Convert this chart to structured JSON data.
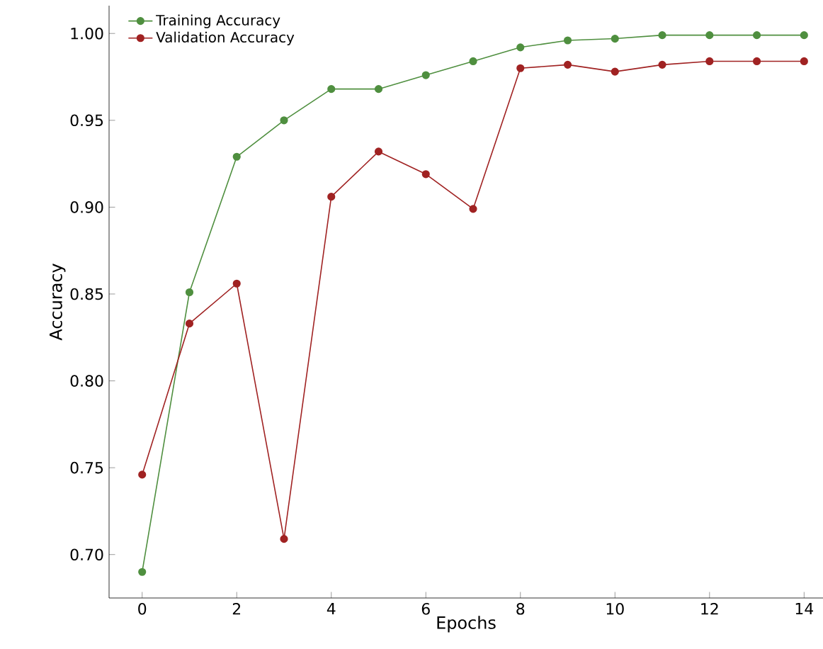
{
  "chart_data": {
    "type": "line",
    "xlabel": "Epochs",
    "ylabel": "Accuracy",
    "x": [
      0,
      1,
      2,
      3,
      4,
      5,
      6,
      7,
      8,
      9,
      10,
      11,
      12,
      13,
      14
    ],
    "series": [
      {
        "name": "Training Accuracy",
        "color": "#4f8f3f",
        "values": [
          0.69,
          0.851,
          0.929,
          0.95,
          0.968,
          0.968,
          0.976,
          0.984,
          0.992,
          0.996,
          0.997,
          0.999,
          0.999,
          0.999,
          0.999
        ]
      },
      {
        "name": "Validation Accuracy",
        "color": "#a02222",
        "values": [
          0.746,
          0.833,
          0.856,
          0.709,
          0.906,
          0.932,
          0.919,
          0.899,
          0.98,
          0.982,
          0.978,
          0.982,
          0.984,
          0.984,
          0.984
        ]
      }
    ],
    "xlim": [
      -0.7,
      14.4
    ],
    "ylim": [
      0.675,
      1.016
    ],
    "xticks": [
      0,
      2,
      4,
      6,
      8,
      10,
      12,
      14
    ],
    "yticks": [
      {
        "value": 0.7,
        "label": "0.70"
      },
      {
        "value": 0.75,
        "label": "0.75"
      },
      {
        "value": 0.8,
        "label": "0.80"
      },
      {
        "value": 0.85,
        "label": "0.85"
      },
      {
        "value": 0.9,
        "label": "0.90"
      },
      {
        "value": 0.95,
        "label": "0.95"
      },
      {
        "value": 1.0,
        "label": "1.00"
      }
    ],
    "legend": "top left",
    "marker": "circle",
    "line_style": "solid",
    "grid": false
  }
}
